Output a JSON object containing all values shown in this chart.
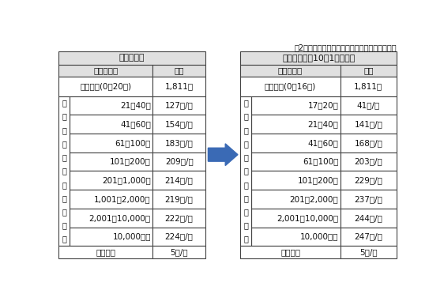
{
  "top_note": "（2か月あたり・消費税は含んでおりません。）",
  "left_table": {
    "title": "現行使用料",
    "col_headers": [
      "水量区分等",
      "単価"
    ],
    "basic": {
      "label": "基本料金(0～20㎥)",
      "value": "1,811円"
    },
    "excess_label": [
      "超",
      "過",
      "料",
      "金",
      "（",
      "１",
      "㎥",
      "当",
      "た",
      "り",
      "）"
    ],
    "excess_rows": [
      [
        "21～40㎥",
        "127円/㎥"
      ],
      [
        "41～60㎥",
        "154円/㎥"
      ],
      [
        "61～100㎥",
        "183円/㎥"
      ],
      [
        "101～200㎥",
        "209円/㎥"
      ],
      [
        "201～1,000㎥",
        "214円/㎥"
      ],
      [
        "1,001～2,000㎥",
        "219円/㎥"
      ],
      [
        "2,001～10,000㎥",
        "222円/㎥"
      ],
      [
        "10,000㎥超",
        "224円/㎥"
      ]
    ],
    "public_bath": [
      "公衆浴場",
      "5円/㎥"
    ]
  },
  "right_table": {
    "title": "改定使用料（10月1日から）",
    "col_headers": [
      "水量区分等",
      "単価"
    ],
    "basic": {
      "label": "基本料金(0～16㎥)",
      "value": "1,811円"
    },
    "excess_label": [
      "超",
      "過",
      "料",
      "金",
      "（",
      "１",
      "㎥",
      "当",
      "た",
      "り",
      "）"
    ],
    "excess_rows": [
      [
        "17～20㎥",
        "41円/㎥"
      ],
      [
        "21～40㎥",
        "141円/㎥"
      ],
      [
        "41～60㎥",
        "168円/㎥"
      ],
      [
        "61～100㎥",
        "203円/㎥"
      ],
      [
        "101～200㎥",
        "229円/㎥"
      ],
      [
        "201～2,000㎥",
        "237円/㎥"
      ],
      [
        "2,001～10,000㎥",
        "244円/㎥"
      ],
      [
        "10,000㎥超",
        "247円/㎥"
      ]
    ],
    "public_bath": [
      "公衆浴場",
      "5円/㎥"
    ]
  },
  "bg_color": "#ffffff",
  "header_bg": "#e0e0e0",
  "border_color": "#444444",
  "text_color": "#111111",
  "arrow_color": "#3a6ab5",
  "font_size": 7.5
}
